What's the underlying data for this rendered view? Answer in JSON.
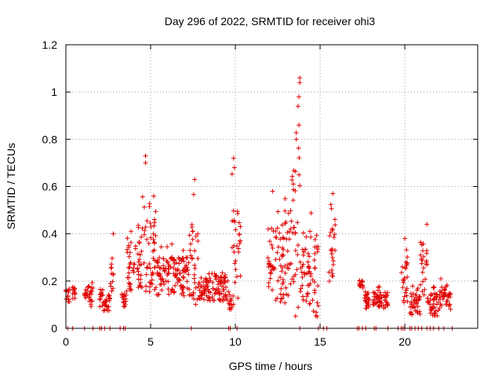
{
  "chart_data": {
    "type": "scatter",
    "title": "Day 296 of 2022, SRMTID for receiver ohi3",
    "xlabel": "GPS time / hours",
    "ylabel": "SRMTID / TECUs",
    "xlim": [
      0,
      24.3
    ],
    "ylim": [
      0,
      1.2
    ],
    "xticks": [
      0,
      5,
      10,
      15,
      20
    ],
    "xtick_labels": [
      "0",
      "5",
      "10",
      "15",
      "20"
    ],
    "yticks": [
      0,
      0.2,
      0.4,
      0.6,
      0.8,
      1.0,
      1.2
    ],
    "ytick_labels": [
      "0",
      "0.2",
      "0.4",
      "0.6",
      "0.8",
      "1",
      "1.2"
    ],
    "grid": true,
    "marker": "+",
    "color": "#e00000",
    "segments": [
      {
        "t0": 0.0,
        "t1": 0.2,
        "base": 0.14,
        "spread": 0.06
      },
      {
        "t0": 0.35,
        "t1": 0.55,
        "base": 0.15,
        "spread": 0.04
      },
      {
        "t0": 1.1,
        "t1": 1.6,
        "base": 0.13,
        "spread": 0.08
      },
      {
        "t0": 2.0,
        "t1": 2.6,
        "base": 0.11,
        "spread": 0.06
      },
      {
        "t0": 2.6,
        "t1": 2.8,
        "base": 0.22,
        "spread": 0.16
      },
      {
        "t0": 3.3,
        "t1": 3.6,
        "base": 0.12,
        "spread": 0.05
      },
      {
        "t0": 3.6,
        "t1": 4.5,
        "base": 0.26,
        "spread": 0.18
      },
      {
        "t0": 4.5,
        "t1": 5.3,
        "base": 0.3,
        "spread": 0.28
      },
      {
        "t0": 5.3,
        "t1": 7.3,
        "base": 0.22,
        "spread": 0.14
      },
      {
        "t0": 7.3,
        "t1": 7.8,
        "base": 0.28,
        "spread": 0.3
      },
      {
        "t0": 7.8,
        "t1": 9.6,
        "base": 0.17,
        "spread": 0.09
      },
      {
        "t0": 9.6,
        "t1": 9.8,
        "base": 0.1,
        "spread": 0.05
      },
      {
        "t0": 9.8,
        "t1": 10.3,
        "base": 0.3,
        "spread": 0.38
      },
      {
        "t0": 11.9,
        "t1": 13.3,
        "base": 0.27,
        "spread": 0.28
      },
      {
        "t0": 13.3,
        "t1": 13.8,
        "base": 0.35,
        "spread": 0.55
      },
      {
        "t0": 13.8,
        "t1": 14.4,
        "base": 0.22,
        "spread": 0.2
      },
      {
        "t0": 14.4,
        "t1": 14.9,
        "base": 0.22,
        "spread": 0.3
      },
      {
        "t0": 15.5,
        "t1": 15.9,
        "base": 0.3,
        "spread": 0.26
      },
      {
        "t0": 17.3,
        "t1": 17.5,
        "base": 0.19,
        "spread": 0.02
      },
      {
        "t0": 17.5,
        "t1": 17.9,
        "base": 0.12,
        "spread": 0.06
      },
      {
        "t0": 18.1,
        "t1": 19.0,
        "base": 0.12,
        "spread": 0.06
      },
      {
        "t0": 19.8,
        "t1": 20.2,
        "base": 0.2,
        "spread": 0.18
      },
      {
        "t0": 20.3,
        "t1": 20.9,
        "base": 0.1,
        "spread": 0.08
      },
      {
        "t0": 20.9,
        "t1": 21.3,
        "base": 0.25,
        "spread": 0.2
      },
      {
        "t0": 21.3,
        "t1": 22.0,
        "base": 0.1,
        "spread": 0.08
      },
      {
        "t0": 22.0,
        "t1": 22.7,
        "base": 0.13,
        "spread": 0.09
      }
    ],
    "highlights": [
      {
        "x": 13.8,
        "y": 1.06
      },
      {
        "x": 13.8,
        "y": 1.04
      },
      {
        "x": 13.75,
        "y": 0.98
      },
      {
        "x": 13.7,
        "y": 0.94
      },
      {
        "x": 13.75,
        "y": 0.86
      },
      {
        "x": 13.6,
        "y": 0.8
      },
      {
        "x": 4.7,
        "y": 0.73
      },
      {
        "x": 4.7,
        "y": 0.7
      },
      {
        "x": 9.9,
        "y": 0.72
      },
      {
        "x": 9.95,
        "y": 0.68
      },
      {
        "x": 7.6,
        "y": 0.63
      },
      {
        "x": 12.2,
        "y": 0.58
      },
      {
        "x": 15.75,
        "y": 0.57
      },
      {
        "x": 21.3,
        "y": 0.44
      },
      {
        "x": 20.0,
        "y": 0.38
      },
      {
        "x": 2.8,
        "y": 0.4
      }
    ],
    "zero_points": [
      0.1,
      0.4,
      1.1,
      1.6,
      2.0,
      2.1,
      2.3,
      2.6,
      3.2,
      3.4,
      3.5,
      7.4,
      9.6,
      9.7,
      10.1,
      13.8,
      14.9,
      15.2,
      15.4,
      17.2,
      17.3,
      17.5,
      17.7,
      18.2,
      18.3,
      19.0,
      19.6,
      19.8,
      19.9,
      20.0,
      20.3,
      20.4,
      20.6,
      20.8,
      21.0,
      21.3,
      21.5,
      21.7,
      22.0,
      22.3,
      22.8
    ]
  }
}
